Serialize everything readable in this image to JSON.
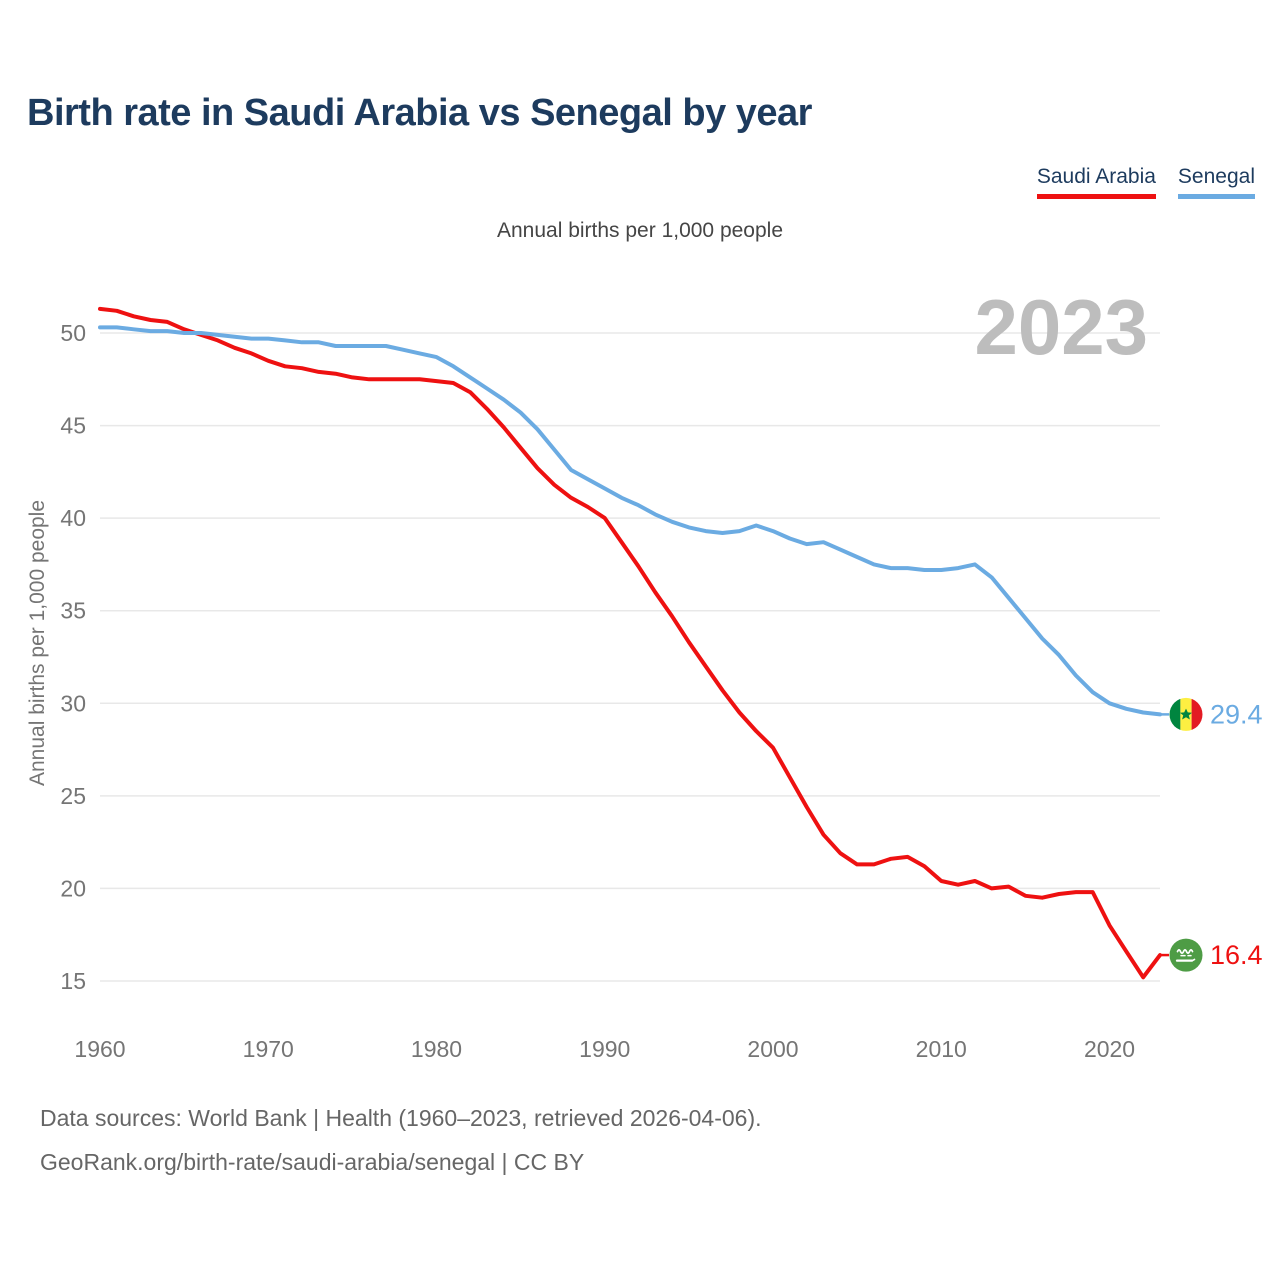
{
  "header": {
    "title": "Birth rate in Saudi Arabia vs Senegal by year"
  },
  "legend": [
    {
      "label": "Saudi Arabia",
      "color": "#ee1111"
    },
    {
      "label": "Senegal",
      "color": "#6babe2"
    }
  ],
  "subtitle": "Annual births per 1,000 people",
  "watermark": "2023",
  "footer": {
    "line1": "Data sources: World Bank | Health (1960–2023, retrieved 2026-04-06).",
    "line2": "GeoRank.org/birth-rate/saudi-arabia/senegal | CC BY"
  },
  "colors": {
    "saudi": "#ee1111",
    "senegal": "#6babe2",
    "title": "#1d3b5e",
    "grid": "#e8e8e8",
    "tick": "#757575",
    "watermark": "#bdbdbd",
    "footer": "#666666"
  },
  "chart_data": {
    "type": "line",
    "title": "Birth rate in Saudi Arabia vs Senegal by year",
    "subtitle": "Annual births per 1,000 people",
    "ylabel": "Annual births per 1,000 people",
    "xlabel": "",
    "grid": "horizontal",
    "legend_position": "top-right",
    "x_range": [
      1960,
      2023
    ],
    "ylim": [
      13.5,
      52.5
    ],
    "x_ticks": [
      "1960",
      "1970",
      "1980",
      "1990",
      "2000",
      "2010",
      "2020"
    ],
    "x_tick_years": [
      1960,
      1970,
      1980,
      1990,
      2000,
      2010,
      2020
    ],
    "y_ticks": [
      50,
      45,
      40,
      35,
      30,
      25,
      20,
      15
    ],
    "watermark": "2023",
    "series": [
      {
        "name": "Saudi Arabia",
        "color": "#ee1111",
        "end_label": "16.4",
        "end_value": 16.4,
        "flag": "saudi-arabia",
        "x_start": 1960,
        "values": [
          51.3,
          51.2,
          50.9,
          50.7,
          50.6,
          50.2,
          49.9,
          49.6,
          49.2,
          48.9,
          48.5,
          48.2,
          48.1,
          47.9,
          47.8,
          47.6,
          47.5,
          47.5,
          47.5,
          47.5,
          47.4,
          47.3,
          46.8,
          45.9,
          44.9,
          43.8,
          42.7,
          41.8,
          41.1,
          40.6,
          40.0,
          38.7,
          37.4,
          36.0,
          34.7,
          33.3,
          32.0,
          30.7,
          29.5,
          28.5,
          27.6,
          26.0,
          24.4,
          22.9,
          21.9,
          21.3,
          21.3,
          21.6,
          21.7,
          21.2,
          20.4,
          20.2,
          20.4,
          20.0,
          20.1,
          19.6,
          19.5,
          19.7,
          19.8,
          19.8,
          18.0,
          16.6,
          15.2,
          16.4
        ]
      },
      {
        "name": "Senegal",
        "color": "#6babe2",
        "end_label": "29.4",
        "end_value": 29.4,
        "flag": "senegal",
        "x_start": 1960,
        "values": [
          50.3,
          50.3,
          50.2,
          50.1,
          50.1,
          50.0,
          50.0,
          49.9,
          49.8,
          49.7,
          49.7,
          49.6,
          49.5,
          49.5,
          49.3,
          49.3,
          49.3,
          49.3,
          49.1,
          48.9,
          48.7,
          48.2,
          47.6,
          47.0,
          46.4,
          45.7,
          44.8,
          43.7,
          42.6,
          42.1,
          41.6,
          41.1,
          40.7,
          40.2,
          39.8,
          39.5,
          39.3,
          39.2,
          39.3,
          39.6,
          39.3,
          38.9,
          38.6,
          38.7,
          38.3,
          37.9,
          37.5,
          37.3,
          37.3,
          37.2,
          37.2,
          37.3,
          37.5,
          36.8,
          35.7,
          34.6,
          33.5,
          32.6,
          31.5,
          30.6,
          30.0,
          29.7,
          29.5,
          29.4
        ]
      }
    ]
  }
}
